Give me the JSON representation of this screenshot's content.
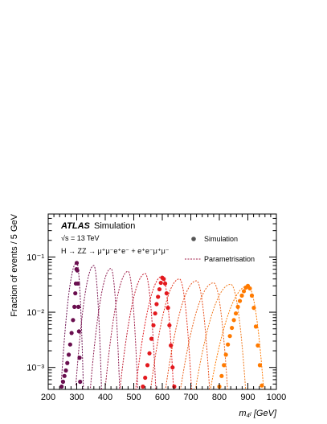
{
  "chart_data": {
    "type": "line",
    "experiment": "ATLAS",
    "status": "Simulation",
    "energy_label": "√s = 13 TeV",
    "process_label": "H → ZZ → μ⁺μ⁻e⁺e⁻ + e⁺e⁻μ⁺μ⁻",
    "xlabel": "m₄ₗ [GeV]",
    "ylabel": "Fraction of events / 5 GeV",
    "xlim": [
      200,
      1000
    ],
    "ylim": [
      0.0004,
      0.6
    ],
    "yscale": "log",
    "x_ticks": [
      "200",
      "300",
      "400",
      "500",
      "600",
      "700",
      "800",
      "900",
      "1000"
    ],
    "y_ticks": [
      "10⁻³",
      "10⁻²",
      "10⁻¹"
    ],
    "legend": {
      "placement": "top-right",
      "simulation": "Simulation",
      "parametrisation": "Parametrisation"
    },
    "grid": false,
    "parametrisations": [
      {
        "mass": 300,
        "peak": 0.08,
        "sigma": 9,
        "color": "#6a0f4f"
      },
      {
        "mass": 360,
        "peak": 0.07,
        "sigma": 10.5,
        "color": "#7b1550"
      },
      {
        "mass": 420,
        "peak": 0.062,
        "sigma": 12,
        "color": "#8c1a4f"
      },
      {
        "mass": 480,
        "peak": 0.055,
        "sigma": 13.5,
        "color": "#a01d47"
      },
      {
        "mass": 540,
        "peak": 0.05,
        "sigma": 15,
        "color": "#c01a30"
      },
      {
        "mass": 600,
        "peak": 0.045,
        "sigma": 16,
        "color": "#e3191e"
      },
      {
        "mass": 660,
        "peak": 0.04,
        "sigma": 17.5,
        "color": "#e3341c"
      },
      {
        "mass": 720,
        "peak": 0.037,
        "sigma": 19,
        "color": "#e8501c"
      },
      {
        "mass": 780,
        "peak": 0.034,
        "sigma": 20.5,
        "color": "#ec631c"
      },
      {
        "mass": 840,
        "peak": 0.032,
        "sigma": 22,
        "color": "#f07a1c"
      },
      {
        "mass": 900,
        "peak": 0.03,
        "sigma": 23.5,
        "color": "#ff7a00"
      }
    ],
    "simulation_points": [
      {
        "color": "#6a0f4f",
        "points": [
          [
            247,
            0.00045
          ],
          [
            252,
            0.00055
          ],
          [
            257,
            0.0007
          ],
          [
            262,
            0.00088
          ],
          [
            267,
            0.0012
          ],
          [
            272,
            0.0017
          ],
          [
            277,
            0.0026
          ],
          [
            282,
            0.0042
          ],
          [
            287,
            0.0072
          ],
          [
            292,
            0.0125
          ],
          [
            295,
            0.022
          ],
          [
            297,
            0.033
          ],
          [
            299,
            0.06
          ],
          [
            300,
            0.078
          ],
          [
            302,
            0.057
          ],
          [
            304,
            0.033
          ],
          [
            306,
            0.0125
          ],
          [
            308,
            0.0045
          ],
          [
            310,
            0.0015
          ],
          [
            312,
            0.00055
          ]
        ]
      },
      {
        "color": "#e3191e",
        "points": [
          [
            532,
            0.00045
          ],
          [
            540,
            0.00065
          ],
          [
            548,
            0.0011
          ],
          [
            555,
            0.0018
          ],
          [
            562,
            0.0033
          ],
          [
            569,
            0.0058
          ],
          [
            575,
            0.0095
          ],
          [
            580,
            0.014
          ],
          [
            585,
            0.019
          ],
          [
            590,
            0.026
          ],
          [
            595,
            0.034
          ],
          [
            600,
            0.042
          ],
          [
            605,
            0.04
          ],
          [
            610,
            0.033
          ],
          [
            615,
            0.022
          ],
          [
            620,
            0.012
          ],
          [
            625,
            0.0058
          ],
          [
            630,
            0.0025
          ],
          [
            636,
            0.001
          ],
          [
            642,
            0.00045
          ]
        ]
      },
      {
        "color": "#ff7a00",
        "points": [
          [
            800,
            0.00045
          ],
          [
            808,
            0.0007
          ],
          [
            816,
            0.0011
          ],
          [
            823,
            0.0017
          ],
          [
            830,
            0.0026
          ],
          [
            837,
            0.0037
          ],
          [
            844,
            0.0052
          ],
          [
            851,
            0.0072
          ],
          [
            858,
            0.0095
          ],
          [
            865,
            0.0125
          ],
          [
            872,
            0.016
          ],
          [
            879,
            0.02
          ],
          [
            886,
            0.024
          ],
          [
            893,
            0.028
          ],
          [
            900,
            0.03
          ],
          [
            907,
            0.027
          ],
          [
            914,
            0.02
          ],
          [
            921,
            0.012
          ],
          [
            928,
            0.0055
          ],
          [
            935,
            0.0025
          ],
          [
            942,
            0.0011
          ],
          [
            949,
            0.00047
          ]
        ]
      }
    ]
  }
}
